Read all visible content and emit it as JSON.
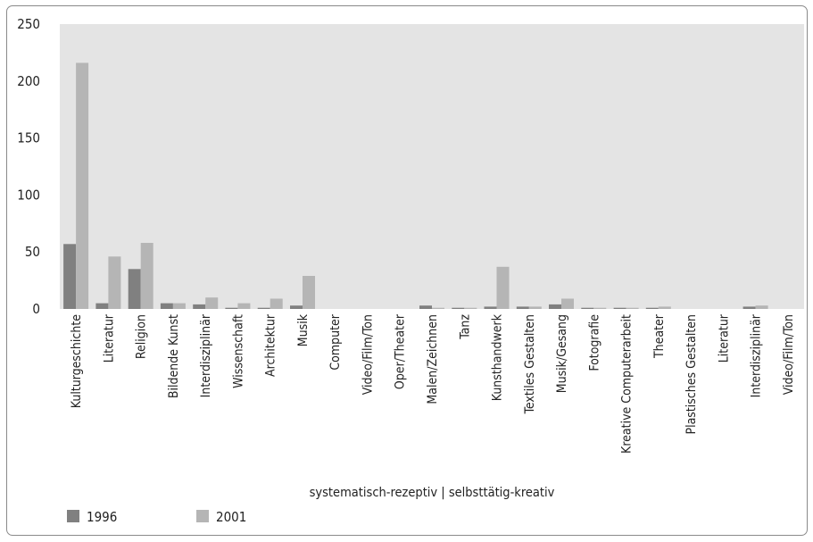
{
  "chart_data": {
    "type": "bar",
    "title": "",
    "xlabel": "systematisch-rezeptiv | selbsttätig-kreativ",
    "ylabel": "",
    "ylim": [
      0,
      250
    ],
    "yticks": [
      "0",
      "50",
      "100",
      "150",
      "200",
      "250"
    ],
    "grid": false,
    "legend_position": "bottom-left",
    "categories": [
      "Kulturgeschichte",
      "Literatur",
      "Religion",
      "Bildende Kunst",
      "Interdisziplinär",
      "Wissenschaft",
      "Architektur",
      "Musik",
      "Computer",
      "Video/Film/Ton",
      "Oper/Theater",
      "Malen/Zeichnen",
      "Tanz",
      "Kunsthandwerk",
      "Textiles Gestalten",
      "Musik/Gesang",
      "Fotografie",
      "Kreative Computerarbeit",
      "Theater",
      "Plastisches Gestalten",
      "Literatur",
      "Interdisziplinär",
      "Video/Film/Ton"
    ],
    "series": [
      {
        "name": "1996",
        "color": "#808080",
        "values": [
          57,
          5,
          35,
          5,
          4,
          1,
          1,
          3,
          0,
          0,
          0,
          3,
          1,
          2,
          2,
          4,
          1,
          1,
          1,
          0,
          0,
          2,
          0
        ]
      },
      {
        "name": "2001",
        "color": "#b5b5b5",
        "values": [
          216,
          46,
          58,
          5,
          10,
          5,
          9,
          29,
          0,
          0,
          0,
          1,
          1,
          37,
          2,
          9,
          1,
          1,
          2,
          0,
          0,
          3,
          0
        ]
      }
    ]
  },
  "colors": {
    "plot_background": "#e4e4e4",
    "series_1996": "#808080",
    "series_2001": "#b5b5b5"
  }
}
